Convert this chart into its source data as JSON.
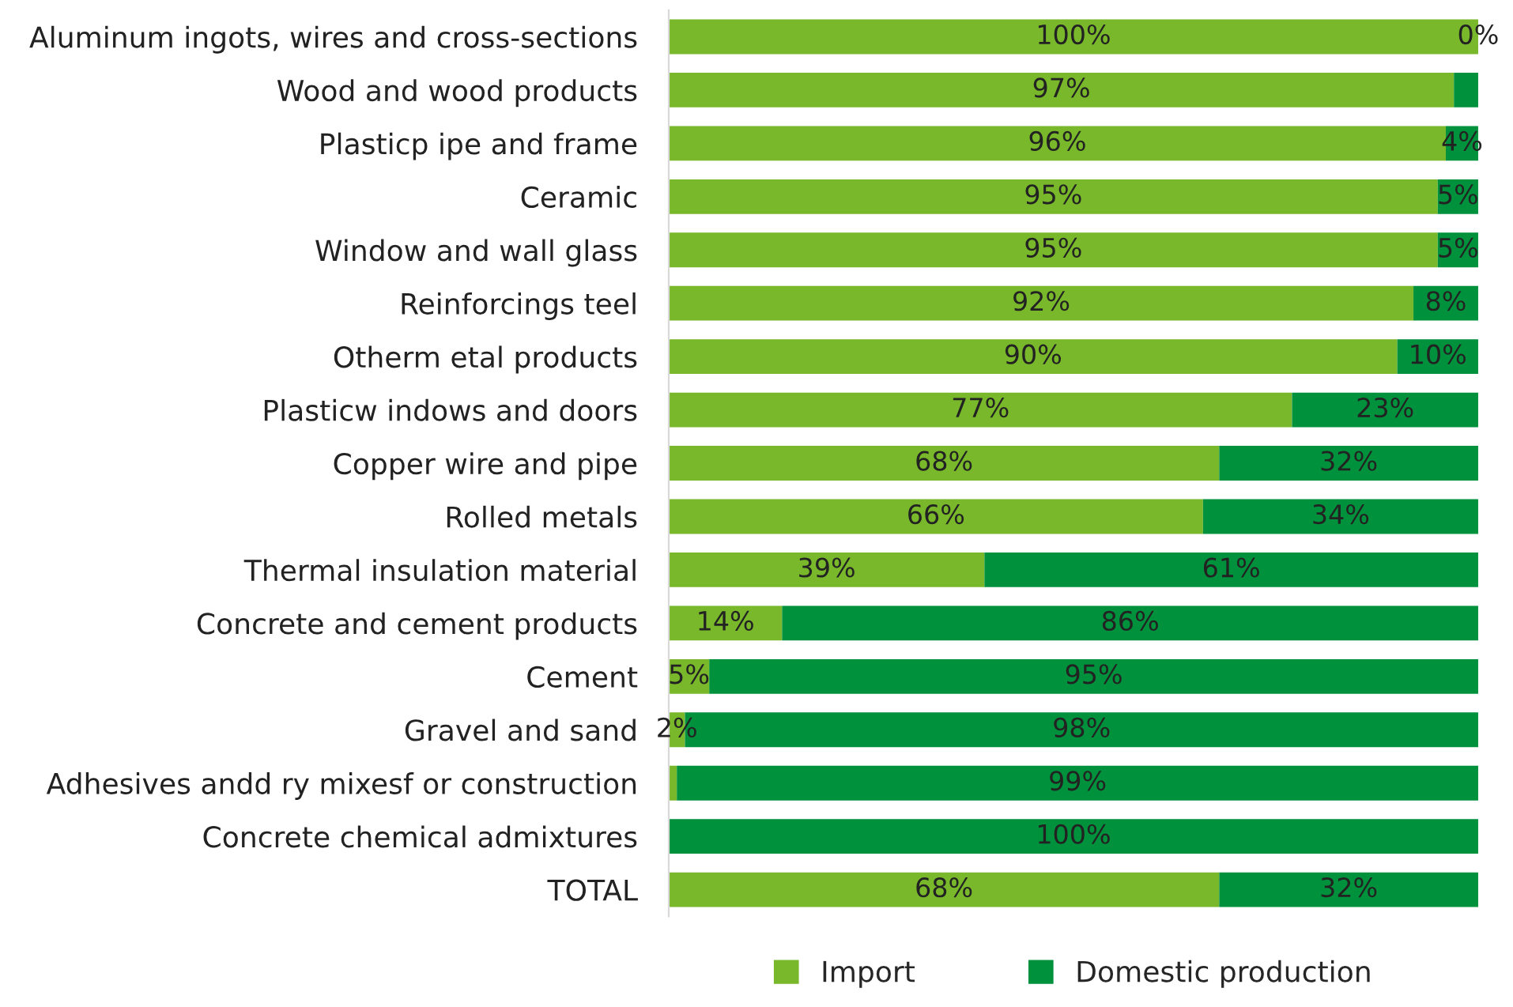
{
  "chart_data": {
    "type": "bar",
    "orientation": "horizontal",
    "stacked": true,
    "categories": [
      "Aluminum ingots, wires and cross-sections",
      "Wood and wood products",
      "Plasticp ipe and frame",
      "Ceramic",
      "Window and wall glass",
      "Reinforcings teel",
      "Otherm etal products",
      "Plasticw indows and doors",
      "Copper wire and pipe",
      "Rolled metals",
      "Thermal insulation material",
      "Concrete and cement products",
      "Cement",
      "Gravel and sand",
      "Adhesives andd ry mixesf or construction",
      "Concrete chemical admixtures",
      "TOTAL"
    ],
    "series": [
      {
        "name": "Import",
        "color": "#78b82a",
        "values": [
          100,
          97,
          96,
          95,
          95,
          92,
          90,
          77,
          68,
          66,
          39,
          14,
          5,
          2,
          1,
          0,
          68
        ],
        "value_labels": [
          "100%",
          "97%",
          "96%",
          "95%",
          "95%",
          "92%",
          "90%",
          "77%",
          "68%",
          "66%",
          "39%",
          "14%",
          "5%",
          "2%",
          null,
          null,
          "68%"
        ]
      },
      {
        "name": "Domestic production",
        "color": "#00913c",
        "values": [
          0,
          3,
          4,
          5,
          5,
          8,
          10,
          23,
          32,
          34,
          61,
          86,
          95,
          98,
          99,
          100,
          32
        ],
        "value_labels": [
          "0%",
          null,
          "4%",
          "5%",
          "5%",
          "8%",
          "10%",
          "23%",
          "32%",
          "34%",
          "61%",
          "86%",
          "95%",
          "98%",
          "99%",
          "100%",
          "32%"
        ]
      }
    ],
    "xlim": [
      0,
      100
    ],
    "tick_labels": "y",
    "grid": false,
    "legend": "bottom"
  }
}
